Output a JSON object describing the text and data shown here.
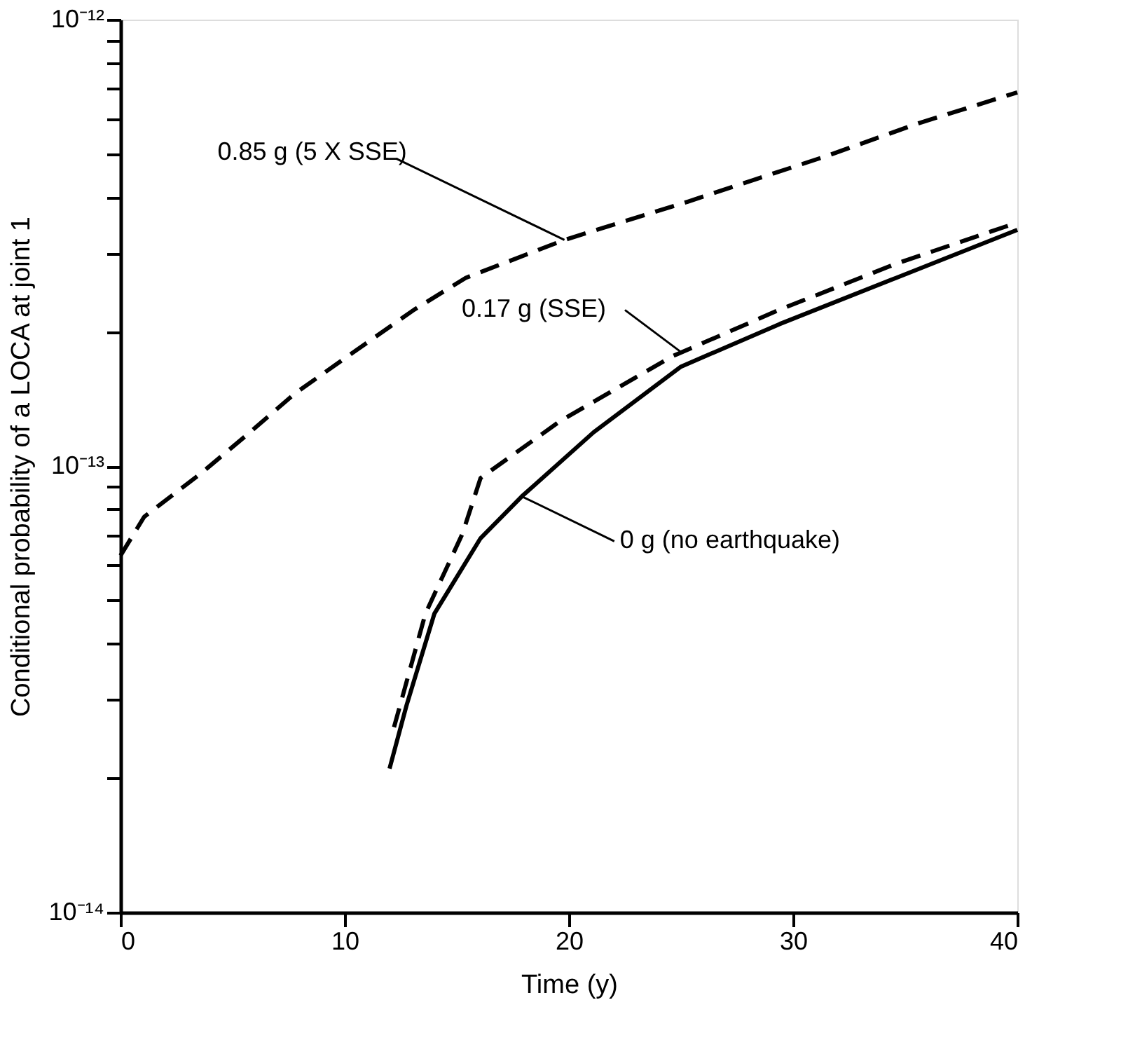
{
  "chart_data": {
    "type": "line",
    "xlabel": "Time (y)",
    "ylabel": "Conditional probability of a LOCA at joint 1",
    "log": "y",
    "xlim": [
      0,
      40
    ],
    "xticks": [
      0,
      10,
      20,
      30,
      40
    ],
    "ylim": [
      1e-14,
      1e-12
    ],
    "yticks": [
      {
        "value": 1e-14,
        "label": "10⁻¹⁴"
      },
      {
        "value": 2e-14,
        "label": null
      },
      {
        "value": 3e-14,
        "label": null
      },
      {
        "value": 4e-14,
        "label": null
      },
      {
        "value": 5e-14,
        "label": null
      },
      {
        "value": 6e-14,
        "label": null
      },
      {
        "value": 7e-14,
        "label": null
      },
      {
        "value": 8e-14,
        "label": null
      },
      {
        "value": 9e-14,
        "label": null
      },
      {
        "value": 1e-13,
        "label": "10⁻¹³"
      },
      {
        "value": 2e-13,
        "label": null
      },
      {
        "value": 3e-13,
        "label": null
      },
      {
        "value": 4e-13,
        "label": null
      },
      {
        "value": 5e-13,
        "label": null
      },
      {
        "value": 6e-13,
        "label": null
      },
      {
        "value": 7e-13,
        "label": null
      },
      {
        "value": 8e-13,
        "label": null
      },
      {
        "value": 9e-13,
        "label": null
      },
      {
        "value": 1e-12,
        "label": "10⁻¹²"
      }
    ],
    "grid": false,
    "legend": false,
    "marker": "none",
    "series": [
      {
        "color": "#000000",
        "line_style": "dashed",
        "x": [
          0,
          1.06,
          3.56,
          5.6,
          7.75,
          10.4,
          13.1,
          15.4,
          19.8,
          25.3,
          31.5,
          35.6,
          40
        ],
        "values": [
          6.3e-14,
          7.7e-14,
          9.6e-14,
          1.17e-13,
          1.45e-13,
          1.8e-13,
          2.24e-13,
          2.64e-13,
          3.21e-13,
          3.91e-13,
          4.95e-13,
          5.86e-13,
          6.87e-13
        ]
      },
      {
        "color": "#000000",
        "line_style": "dashed",
        "x": [
          12.2,
          13.6,
          15.25,
          16.06,
          19.6,
          24.6,
          29.4,
          34.6,
          40
        ],
        "values": [
          2.6e-14,
          4.67e-14,
          7.05e-14,
          9.4e-14,
          1.26e-13,
          1.76e-13,
          2.24e-13,
          2.84e-13,
          3.51e-13
        ]
      },
      {
        "color": "#000000",
        "line_style": "solid",
        "x": [
          12.0,
          12.75,
          14.0,
          16.06,
          17.9,
          21.1,
          25.0,
          29.4,
          34.6,
          40
        ],
        "values": [
          2.1e-14,
          2.9e-14,
          4.67e-14,
          6.89e-14,
          8.55e-14,
          1.19e-13,
          1.67e-13,
          2.08e-13,
          2.64e-13,
          3.38e-13
        ]
      }
    ],
    "annotations": [
      {
        "text": "0.85 g (5 X SSE)",
        "x": 19.8,
        "y": 3.21e-13
      },
      {
        "text": "0.17 g (SSE)",
        "x": 25.0,
        "y": 1.8e-13
      },
      {
        "text": "0 g (no earthquake)",
        "x": 17.9,
        "y": 8.55e-14
      }
    ]
  }
}
